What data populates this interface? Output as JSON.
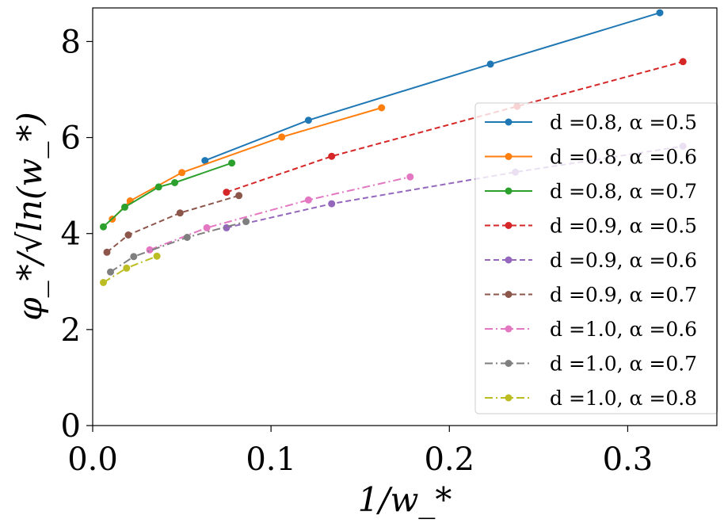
{
  "chart_data": {
    "type": "line",
    "title": "",
    "xlabel": "1/w_*",
    "ylabel": "φ_*/√ln(w_*)",
    "xlim": [
      0.0,
      0.35
    ],
    "ylim": [
      0,
      8.7
    ],
    "xticks": [
      {
        "value": 0.0,
        "label": "0.0"
      },
      {
        "value": 0.1,
        "label": "0.1"
      },
      {
        "value": 0.2,
        "label": "0.2"
      },
      {
        "value": 0.3,
        "label": "0.3"
      }
    ],
    "yticks": [
      {
        "value": 0,
        "label": "0"
      },
      {
        "value": 2,
        "label": "2"
      },
      {
        "value": 4,
        "label": "4"
      },
      {
        "value": 6,
        "label": "6"
      },
      {
        "value": 8,
        "label": "8"
      }
    ],
    "grid": false,
    "legend_position": "right",
    "series": [
      {
        "name": "d =0.8, α =0.5",
        "color": "#1f77b4",
        "dash": "solid",
        "x": [
          0.063,
          0.121,
          0.223,
          0.318
        ],
        "y": [
          5.52,
          6.36,
          7.53,
          8.6
        ]
      },
      {
        "name": "d =0.8, α =0.6",
        "color": "#ff7f0e",
        "dash": "solid",
        "x": [
          0.011,
          0.021,
          0.05,
          0.106,
          0.162
        ],
        "y": [
          4.3,
          4.68,
          5.27,
          6.01,
          6.62
        ]
      },
      {
        "name": "d =0.8, α =0.7",
        "color": "#2ca02c",
        "dash": "solid",
        "x": [
          0.006,
          0.018,
          0.037,
          0.046,
          0.078
        ],
        "y": [
          4.14,
          4.55,
          4.97,
          5.06,
          5.47
        ]
      },
      {
        "name": "d =0.9, α =0.5",
        "color": "#d62728",
        "dash": "dashed",
        "x": [
          0.075,
          0.134,
          0.238,
          0.331
        ],
        "y": [
          4.86,
          5.61,
          6.65,
          7.58
        ]
      },
      {
        "name": "d =0.9, α =0.6",
        "color": "#9467bd",
        "dash": "dashed",
        "x": [
          0.075,
          0.134,
          0.237,
          0.331
        ],
        "y": [
          4.12,
          4.62,
          5.28,
          5.82
        ]
      },
      {
        "name": "d =0.9, α =0.7",
        "color": "#8c564b",
        "dash": "dashed",
        "x": [
          0.008,
          0.02,
          0.049,
          0.082
        ],
        "y": [
          3.61,
          3.97,
          4.43,
          4.79
        ]
      },
      {
        "name": "d =1.0, α =0.6",
        "color": "#e377c2",
        "dash": "dashdot",
        "x": [
          0.032,
          0.064,
          0.121,
          0.178
        ],
        "y": [
          3.66,
          4.12,
          4.7,
          5.18
        ]
      },
      {
        "name": "d =1.0, α =0.7",
        "color": "#7f7f7f",
        "dash": "dashdot",
        "x": [
          0.01,
          0.023,
          0.053,
          0.086
        ],
        "y": [
          3.2,
          3.52,
          3.92,
          4.25
        ]
      },
      {
        "name": "d =1.0, α =0.8",
        "color": "#bcbd22",
        "dash": "dashdot",
        "x": [
          0.006,
          0.019,
          0.036
        ],
        "y": [
          2.98,
          3.28,
          3.53
        ]
      }
    ]
  }
}
